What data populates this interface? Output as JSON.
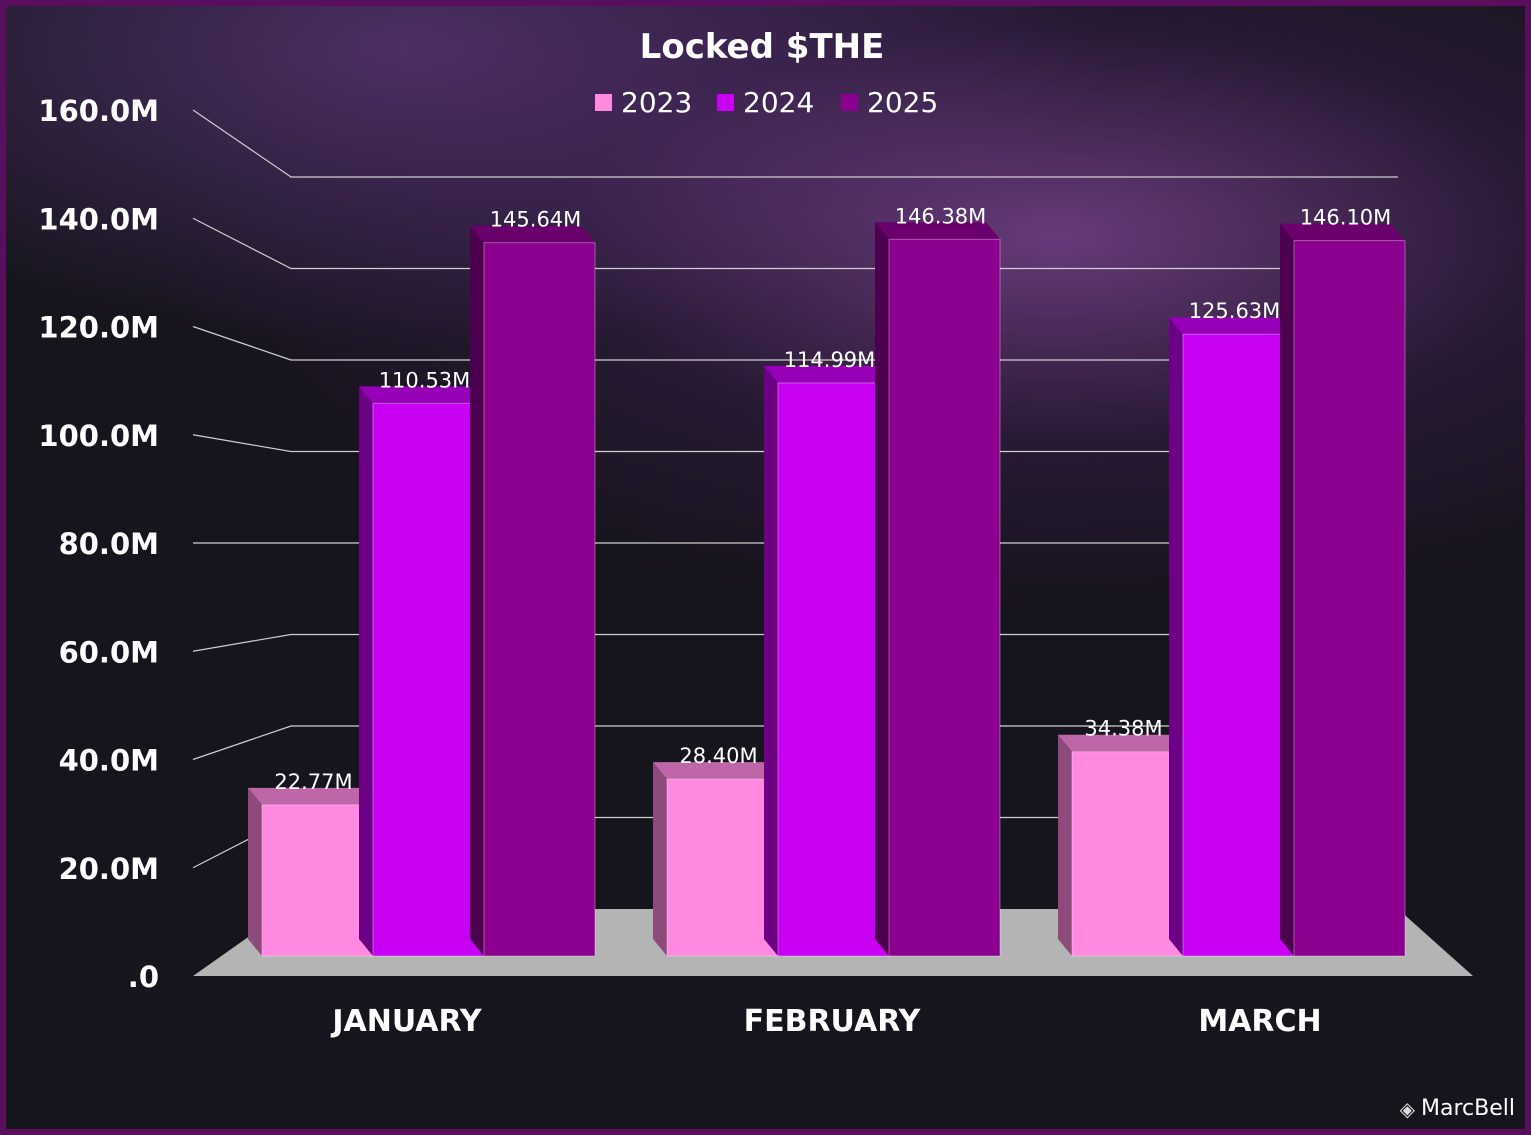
{
  "chart_data": {
    "type": "bar",
    "title": "Locked $THE",
    "categories": [
      "JANUARY",
      "FEBRUARY",
      "MARCH"
    ],
    "series": [
      {
        "name": "2023",
        "values": [
          22.77,
          28.4,
          34.38
        ],
        "labels": [
          "22.77M",
          "28.40M",
          "34.38M"
        ],
        "color": "#ff88e0"
      },
      {
        "name": "2024",
        "values": [
          110.53,
          114.99,
          125.63
        ],
        "labels": [
          "110.53M",
          "114.99M",
          "125.63M"
        ],
        "color": "#c800f4"
      },
      {
        "name": "2025",
        "values": [
          145.64,
          146.38,
          146.1
        ],
        "labels": [
          "145.64M",
          "146.38M",
          "146.10M"
        ],
        "color": "#8c0090"
      }
    ],
    "yticks": [
      ".0",
      "20.0M",
      "40.0M",
      "60.0M",
      "80.0M",
      "100.0M",
      "120.0M",
      "140.0M",
      "160.0M"
    ],
    "ylim": [
      0,
      160
    ],
    "unit": "M",
    "legend_position": "top",
    "grid": true,
    "style": "3d"
  },
  "watermark": "MarcBell",
  "colors": {
    "background": "#16141c",
    "border": "#5a0f5e",
    "floor": "#b4b4b4"
  }
}
